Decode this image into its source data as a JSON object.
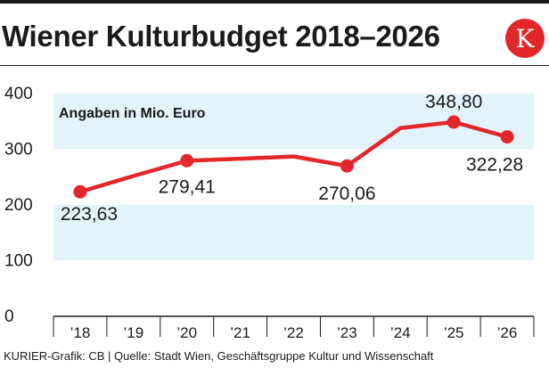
{
  "title": "Wiener Kulturbudget 2018–2026",
  "logo_letter": "K",
  "footer": "KURIER-Grafik: CB | Quelle: Stadt Wien, Geschäftsgruppe Kultur und Wissenschaft",
  "colors": {
    "line": "#e3262a",
    "band": "#e3f3fb",
    "accent": "#e3262a",
    "text": "#1a1a1a"
  },
  "chart_data": {
    "type": "line",
    "title": "Wiener Kulturbudget 2018–2026",
    "subtitle": "Angaben in Mio. Euro",
    "xlabel": "",
    "ylabel": "",
    "ylim": [
      0,
      400
    ],
    "yticks": [
      0,
      100,
      200,
      300,
      400
    ],
    "categories": [
      "’18",
      "’19",
      "’20",
      "’21",
      "’22",
      "’23",
      "’24",
      "’25",
      "’26"
    ],
    "series": [
      {
        "name": "Kulturbudget",
        "values": [
          223.63,
          252,
          279.41,
          283,
          287,
          270.06,
          338,
          348.8,
          322.28
        ]
      }
    ],
    "data_labels": [
      {
        "index": 0,
        "text": "223,63"
      },
      {
        "index": 2,
        "text": "279,41"
      },
      {
        "index": 5,
        "text": "270,06"
      },
      {
        "index": 7,
        "text": "348,80"
      },
      {
        "index": 8,
        "text": "322,28"
      }
    ],
    "grid": false,
    "legend": "none"
  }
}
